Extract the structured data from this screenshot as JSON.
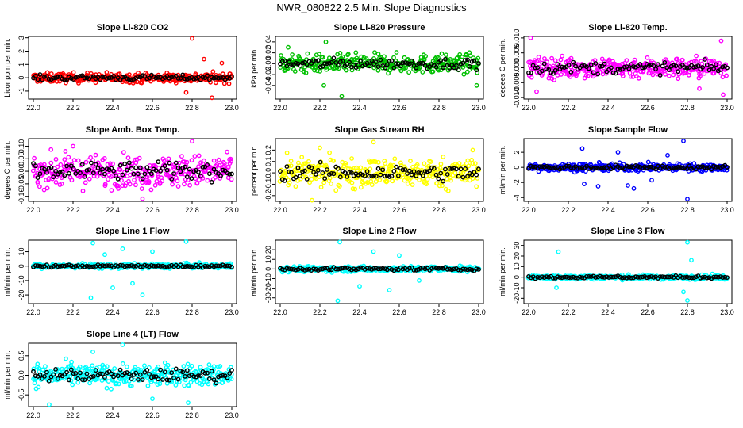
{
  "page": {
    "title": "NWR_080822  2.5 Min. Slope Diagnostics"
  },
  "chart_data": [
    {
      "type": "scatter",
      "title": "Slope Li-820 CO2",
      "ylabel": "Licor ppm per min.",
      "color": "#ff0000",
      "xlim": [
        22.0,
        23.0
      ],
      "ylim": [
        -1.6,
        3.1
      ],
      "xticks": [
        "22.0",
        "22.2",
        "22.4",
        "22.6",
        "22.8",
        "23.0"
      ],
      "yticks": [
        {
          "v": -1,
          "label": "-1"
        },
        {
          "v": 0,
          "label": "0"
        },
        {
          "v": 1,
          "label": "1"
        },
        {
          "v": 2,
          "label": "2"
        },
        {
          "v": 3,
          "label": "3"
        }
      ],
      "spread": 0.25,
      "outliers": [
        [
          22.8,
          2.95
        ],
        [
          22.86,
          1.4
        ],
        [
          22.9,
          -1.5
        ],
        [
          22.95,
          1.1
        ],
        [
          22.77,
          -1.1
        ]
      ]
    },
    {
      "type": "scatter",
      "title": "Slope Li-820 Pressure",
      "ylabel": "kPa per min.",
      "color": "#00c000",
      "xlim": [
        22.0,
        23.0
      ],
      "ylim": [
        -0.065,
        0.05
      ],
      "xticks": [
        "22.0",
        "22.2",
        "22.4",
        "22.6",
        "22.8",
        "23.0"
      ],
      "yticks": [
        {
          "v": -0.04,
          "label": "-0.04"
        },
        {
          "v": -0.02,
          "label": "-0.02"
        },
        {
          "v": 0,
          "label": "0.00"
        },
        {
          "v": 0.02,
          "label": "0.02"
        },
        {
          "v": 0.04,
          "label": "0.04"
        }
      ],
      "spread": 0.012,
      "outliers": [
        [
          22.23,
          0.04
        ],
        [
          22.31,
          -0.06
        ],
        [
          22.22,
          -0.04
        ],
        [
          22.99,
          -0.04
        ],
        [
          22.04,
          0.03
        ]
      ]
    },
    {
      "type": "scatter",
      "title": "Slope Li-820 Temp.",
      "ylabel": "degees C per min.",
      "color": "#ff00ff",
      "xlim": [
        22.0,
        23.0
      ],
      "ylim": [
        -0.0105,
        0.0105
      ],
      "xticks": [
        "22.0",
        "22.2",
        "22.4",
        "22.6",
        "22.8",
        "23.0"
      ],
      "yticks": [
        {
          "v": -0.01,
          "label": "-0.010"
        },
        {
          "v": -0.005,
          "label": "-0.005"
        },
        {
          "v": 0,
          "label": "0.000"
        },
        {
          "v": 0.005,
          "label": "0.005"
        },
        {
          "v": 0.01,
          "label": "0.010"
        }
      ],
      "spread": 0.0025,
      "outliers": [
        [
          22.01,
          0.01
        ],
        [
          22.04,
          -0.008
        ],
        [
          22.97,
          0.009
        ],
        [
          22.98,
          -0.009
        ],
        [
          22.86,
          -0.007
        ]
      ]
    },
    {
      "type": "scatter",
      "title": "Slope Amb. Box Temp.",
      "ylabel": "degees C per min.",
      "color": "#ff00ff",
      "xlim": [
        22.0,
        23.0
      ],
      "ylim": [
        -0.12,
        0.13
      ],
      "xticks": [
        "22.0",
        "22.2",
        "22.4",
        "22.6",
        "22.8",
        "23.0"
      ],
      "yticks": [
        {
          "v": -0.1,
          "label": "-0.10"
        },
        {
          "v": -0.05,
          "label": "-0.05"
        },
        {
          "v": 0,
          "label": "0.00"
        },
        {
          "v": 0.05,
          "label": "0.05"
        },
        {
          "v": 0.1,
          "label": "0.10"
        }
      ],
      "spread": 0.045,
      "outliers": [
        [
          22.8,
          0.12
        ],
        [
          22.55,
          -0.11
        ],
        [
          22.2,
          0.1
        ]
      ]
    },
    {
      "type": "scatter",
      "title": "Slope Gas Stream RH",
      "ylabel": "percent per min.",
      "color": "#ffff00",
      "xlim": [
        22.0,
        23.0
      ],
      "ylim": [
        -0.25,
        0.3
      ],
      "xticks": [
        "22.0",
        "22.2",
        "22.4",
        "22.6",
        "22.8",
        "23.0"
      ],
      "yticks": [
        {
          "v": -0.2,
          "label": "-0.2"
        },
        {
          "v": -0.1,
          "label": "-0.1"
        },
        {
          "v": 0,
          "label": "0.0"
        },
        {
          "v": 0.1,
          "label": "0.1"
        },
        {
          "v": 0.2,
          "label": "0.2"
        }
      ],
      "spread": 0.09,
      "outliers": [
        [
          22.47,
          0.27
        ],
        [
          22.2,
          0.22
        ],
        [
          22.16,
          -0.24
        ],
        [
          22.97,
          0.2
        ]
      ]
    },
    {
      "type": "scatter",
      "title": "Slope Sample Flow",
      "ylabel": "ml/min per min.",
      "color": "#0000ff",
      "xlim": [
        22.0,
        23.0
      ],
      "ylim": [
        -4.5,
        3.8
      ],
      "xticks": [
        "22.0",
        "22.2",
        "22.4",
        "22.6",
        "22.8",
        "23.0"
      ],
      "yticks": [
        {
          "v": -4,
          "label": "-4"
        },
        {
          "v": -2,
          "label": "-2"
        },
        {
          "v": 0,
          "label": "0"
        },
        {
          "v": 2,
          "label": "2"
        }
      ],
      "spread": 0.35,
      "outliers": [
        [
          22.78,
          3.5
        ],
        [
          22.8,
          -4.2
        ],
        [
          22.27,
          2.5
        ],
        [
          22.35,
          -2.5
        ],
        [
          22.28,
          -2.2
        ],
        [
          22.45,
          2.0
        ],
        [
          22.62,
          -1.7
        ],
        [
          22.7,
          1.6
        ],
        [
          22.5,
          -2.4
        ],
        [
          22.53,
          -2.8
        ]
      ]
    },
    {
      "type": "scatter",
      "title": "Slope Line 1 Flow",
      "ylabel": "ml/min per min.",
      "color": "#00ffff",
      "xlim": [
        22.0,
        23.0
      ],
      "ylim": [
        -26,
        18
      ],
      "xticks": [
        "22.0",
        "22.2",
        "22.4",
        "22.6",
        "22.8",
        "23.0"
      ],
      "yticks": [
        {
          "v": -20,
          "label": "-20"
        },
        {
          "v": -10,
          "label": "-10"
        },
        {
          "v": 0,
          "label": "0"
        },
        {
          "v": 10,
          "label": "10"
        }
      ],
      "spread": 1.2,
      "outliers": [
        [
          22.3,
          16
        ],
        [
          22.29,
          -22
        ],
        [
          22.4,
          -15
        ],
        [
          22.45,
          12
        ],
        [
          22.55,
          -20
        ],
        [
          22.6,
          10
        ],
        [
          22.77,
          17
        ],
        [
          22.5,
          -12
        ],
        [
          22.36,
          8
        ]
      ]
    },
    {
      "type": "scatter",
      "title": "Slope Line 2 Flow",
      "ylabel": "ml/min per min.",
      "color": "#00ffff",
      "xlim": [
        22.0,
        23.0
      ],
      "ylim": [
        -36,
        30
      ],
      "xticks": [
        "22.0",
        "22.2",
        "22.4",
        "22.6",
        "22.8",
        "23.0"
      ],
      "yticks": [
        {
          "v": -30,
          "label": "-30"
        },
        {
          "v": -20,
          "label": "-20"
        },
        {
          "v": -10,
          "label": "-10"
        },
        {
          "v": 0,
          "label": "0"
        },
        {
          "v": 10,
          "label": "10"
        },
        {
          "v": 20,
          "label": "20"
        }
      ],
      "spread": 2.0,
      "outliers": [
        [
          22.3,
          28
        ],
        [
          22.29,
          -33
        ],
        [
          22.47,
          18
        ],
        [
          22.55,
          -22
        ],
        [
          22.4,
          -18
        ],
        [
          22.6,
          14
        ],
        [
          22.7,
          -12
        ]
      ]
    },
    {
      "type": "scatter",
      "title": "Slope Line 3 Flow",
      "ylabel": "ml/min per min.",
      "color": "#00ffff",
      "xlim": [
        22.0,
        23.0
      ],
      "ylim": [
        -25,
        35
      ],
      "xticks": [
        "22.0",
        "22.2",
        "22.4",
        "22.6",
        "22.8",
        "23.0"
      ],
      "yticks": [
        {
          "v": -20,
          "label": "-20"
        },
        {
          "v": -10,
          "label": "-10"
        },
        {
          "v": 0,
          "label": "0"
        },
        {
          "v": 10,
          "label": "10"
        },
        {
          "v": 20,
          "label": "20"
        },
        {
          "v": 30,
          "label": "30"
        }
      ],
      "spread": 1.5,
      "outliers": [
        [
          22.15,
          24
        ],
        [
          22.14,
          -10
        ],
        [
          22.8,
          33
        ],
        [
          22.8,
          -22
        ],
        [
          22.78,
          -14
        ],
        [
          22.82,
          16
        ]
      ]
    },
    {
      "type": "scatter",
      "title": "Slope Line 4 (LT) Flow",
      "ylabel": "ml/min per min.",
      "color": "#00ffff",
      "xlim": [
        22.0,
        23.0
      ],
      "ylim": [
        -0.8,
        0.82
      ],
      "xticks": [
        "22.0",
        "22.2",
        "22.4",
        "22.6",
        "22.8",
        "23.0"
      ],
      "yticks": [
        {
          "v": -0.5,
          "label": "-0.5"
        },
        {
          "v": 0,
          "label": "0.0"
        },
        {
          "v": 0.5,
          "label": "0.5"
        }
      ],
      "spread": 0.2,
      "outliers": [
        [
          22.45,
          0.78
        ],
        [
          22.08,
          -0.75
        ],
        [
          22.78,
          -0.7
        ],
        [
          22.3,
          0.6
        ],
        [
          22.6,
          -0.6
        ]
      ]
    }
  ]
}
